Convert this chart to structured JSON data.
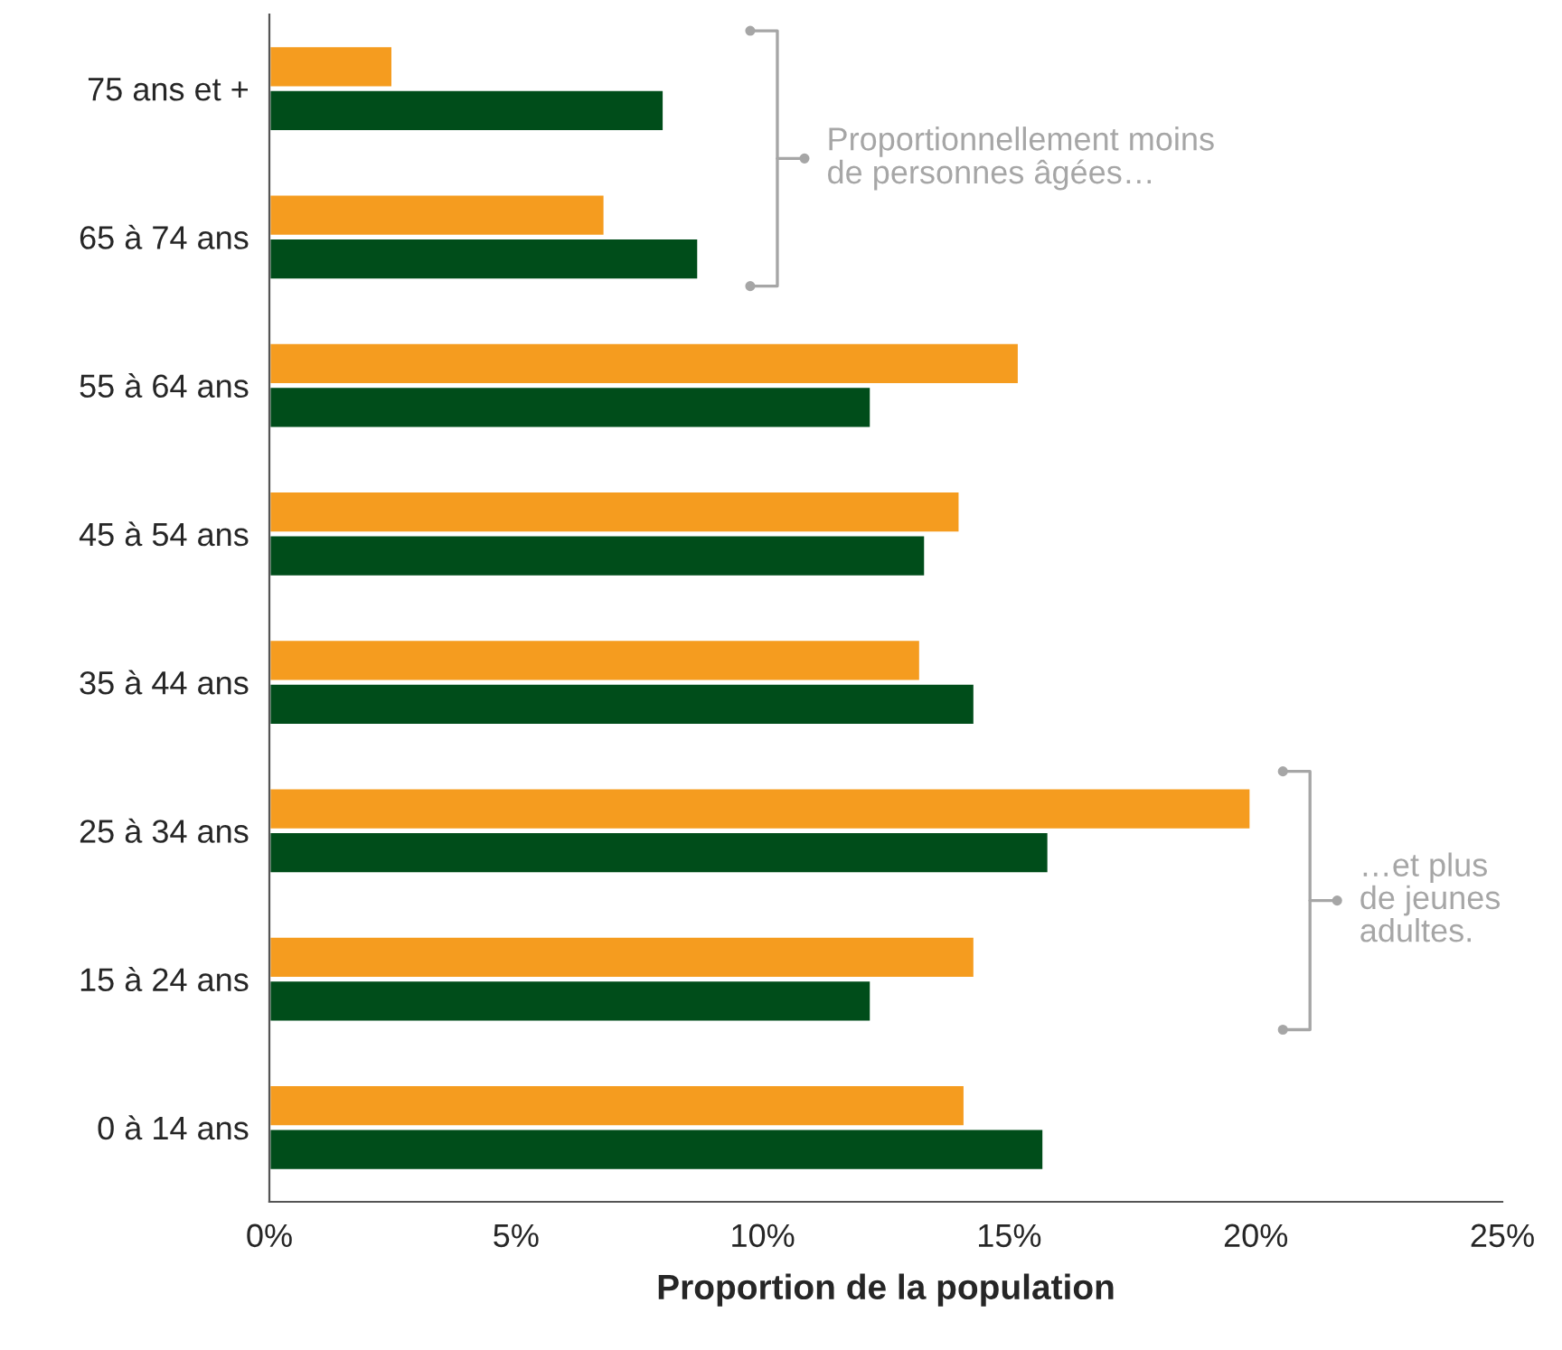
{
  "chart_data": {
    "type": "bar",
    "orientation": "horizontal",
    "categories": [
      "75 ans et +",
      "65 à 74 ans",
      "55 à 64 ans",
      "45 à 54 ans",
      "35 à 44 ans",
      "25 à 34 ans",
      "15 à 24 ans",
      "0 à 14 ans"
    ],
    "series": [
      {
        "color": "#f59c1f",
        "values": [
          2.5,
          6.8,
          15.2,
          14.0,
          13.2,
          19.9,
          14.3,
          14.1
        ]
      },
      {
        "color": "#004d1a",
        "values": [
          8.0,
          8.7,
          12.2,
          13.3,
          14.3,
          15.8,
          12.2,
          15.7
        ]
      }
    ],
    "xlabel": "Proportion de la population",
    "xlim": [
      0,
      25
    ],
    "xticks": [
      {
        "value": 0,
        "label": "0%"
      },
      {
        "value": 5,
        "label": "5%"
      },
      {
        "value": 10,
        "label": "10%"
      },
      {
        "value": 15,
        "label": "15%"
      },
      {
        "value": 20,
        "label": "20%"
      },
      {
        "value": 25,
        "label": "25%"
      }
    ],
    "annotations": [
      "Proportionnellement moins\nde personnes âgées…",
      "…et plus\nde jeunes\nadultes."
    ],
    "grid": false
  }
}
